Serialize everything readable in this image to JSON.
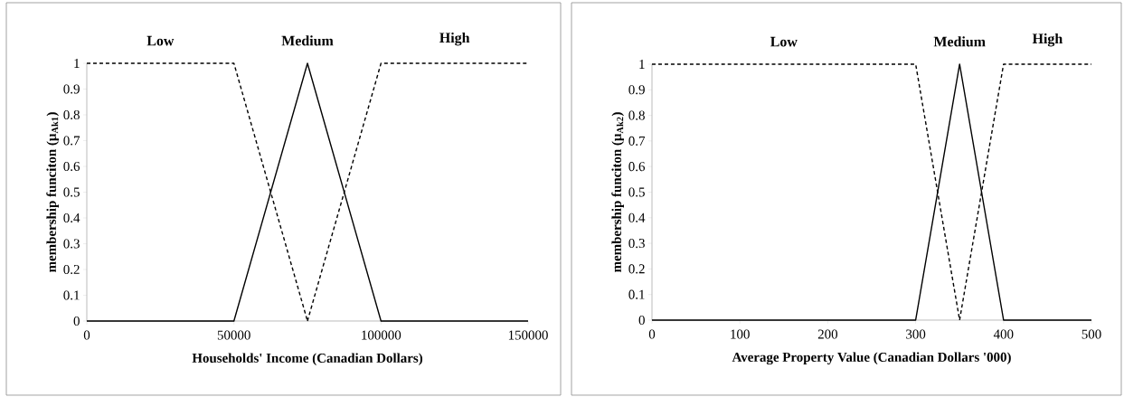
{
  "chart_data": [
    {
      "type": "line",
      "xlabel": "Households' Income (Canadian Dollars)",
      "ylabel": "membership funciton (μ$_{Ak1}$)",
      "xlim": [
        0,
        150000
      ],
      "ylim": [
        0,
        1
      ],
      "xticks": [
        0,
        50000,
        100000,
        150000
      ],
      "yticks": [
        0,
        0.1,
        0.2,
        0.3,
        0.4,
        0.5,
        0.6,
        0.7,
        0.8,
        0.9,
        1
      ],
      "grid": false,
      "series": [
        {
          "name": "Low",
          "color": "#000000",
          "line_style": "dashed",
          "x": [
            0,
            50000,
            75000
          ],
          "values": [
            1,
            1,
            0
          ]
        },
        {
          "name": "Medium",
          "color": "#000000",
          "line_style": "solid",
          "x": [
            0,
            50000,
            75000,
            100000,
            150000
          ],
          "values": [
            0,
            0,
            1,
            0,
            0
          ]
        },
        {
          "name": "High",
          "color": "#000000",
          "line_style": "dashed",
          "x": [
            75000,
            100000,
            150000
          ],
          "values": [
            0,
            1,
            1
          ]
        }
      ]
    },
    {
      "type": "line",
      "xlabel": "Average Property Value (Canadian Dollars '000)",
      "ylabel": "membership funciton (μ$_{Ak2}$)",
      "xlim": [
        0,
        500
      ],
      "ylim": [
        0,
        1
      ],
      "xticks": [
        0,
        100,
        200,
        300,
        400,
        500
      ],
      "yticks": [
        0,
        0.1,
        0.2,
        0.3,
        0.4,
        0.5,
        0.6,
        0.7,
        0.8,
        0.9,
        1
      ],
      "grid": false,
      "series": [
        {
          "name": "Low",
          "color": "#000000",
          "line_style": "dashed",
          "x": [
            0,
            300,
            350
          ],
          "values": [
            1,
            1,
            0
          ]
        },
        {
          "name": "Medium",
          "color": "#000000",
          "line_style": "solid",
          "x": [
            0,
            300,
            350,
            400,
            500
          ],
          "values": [
            0,
            0,
            1,
            0,
            0
          ]
        },
        {
          "name": "High",
          "color": "#000000",
          "line_style": "dashed",
          "x": [
            350,
            400,
            500
          ],
          "values": [
            0,
            1,
            1
          ]
        }
      ]
    }
  ]
}
